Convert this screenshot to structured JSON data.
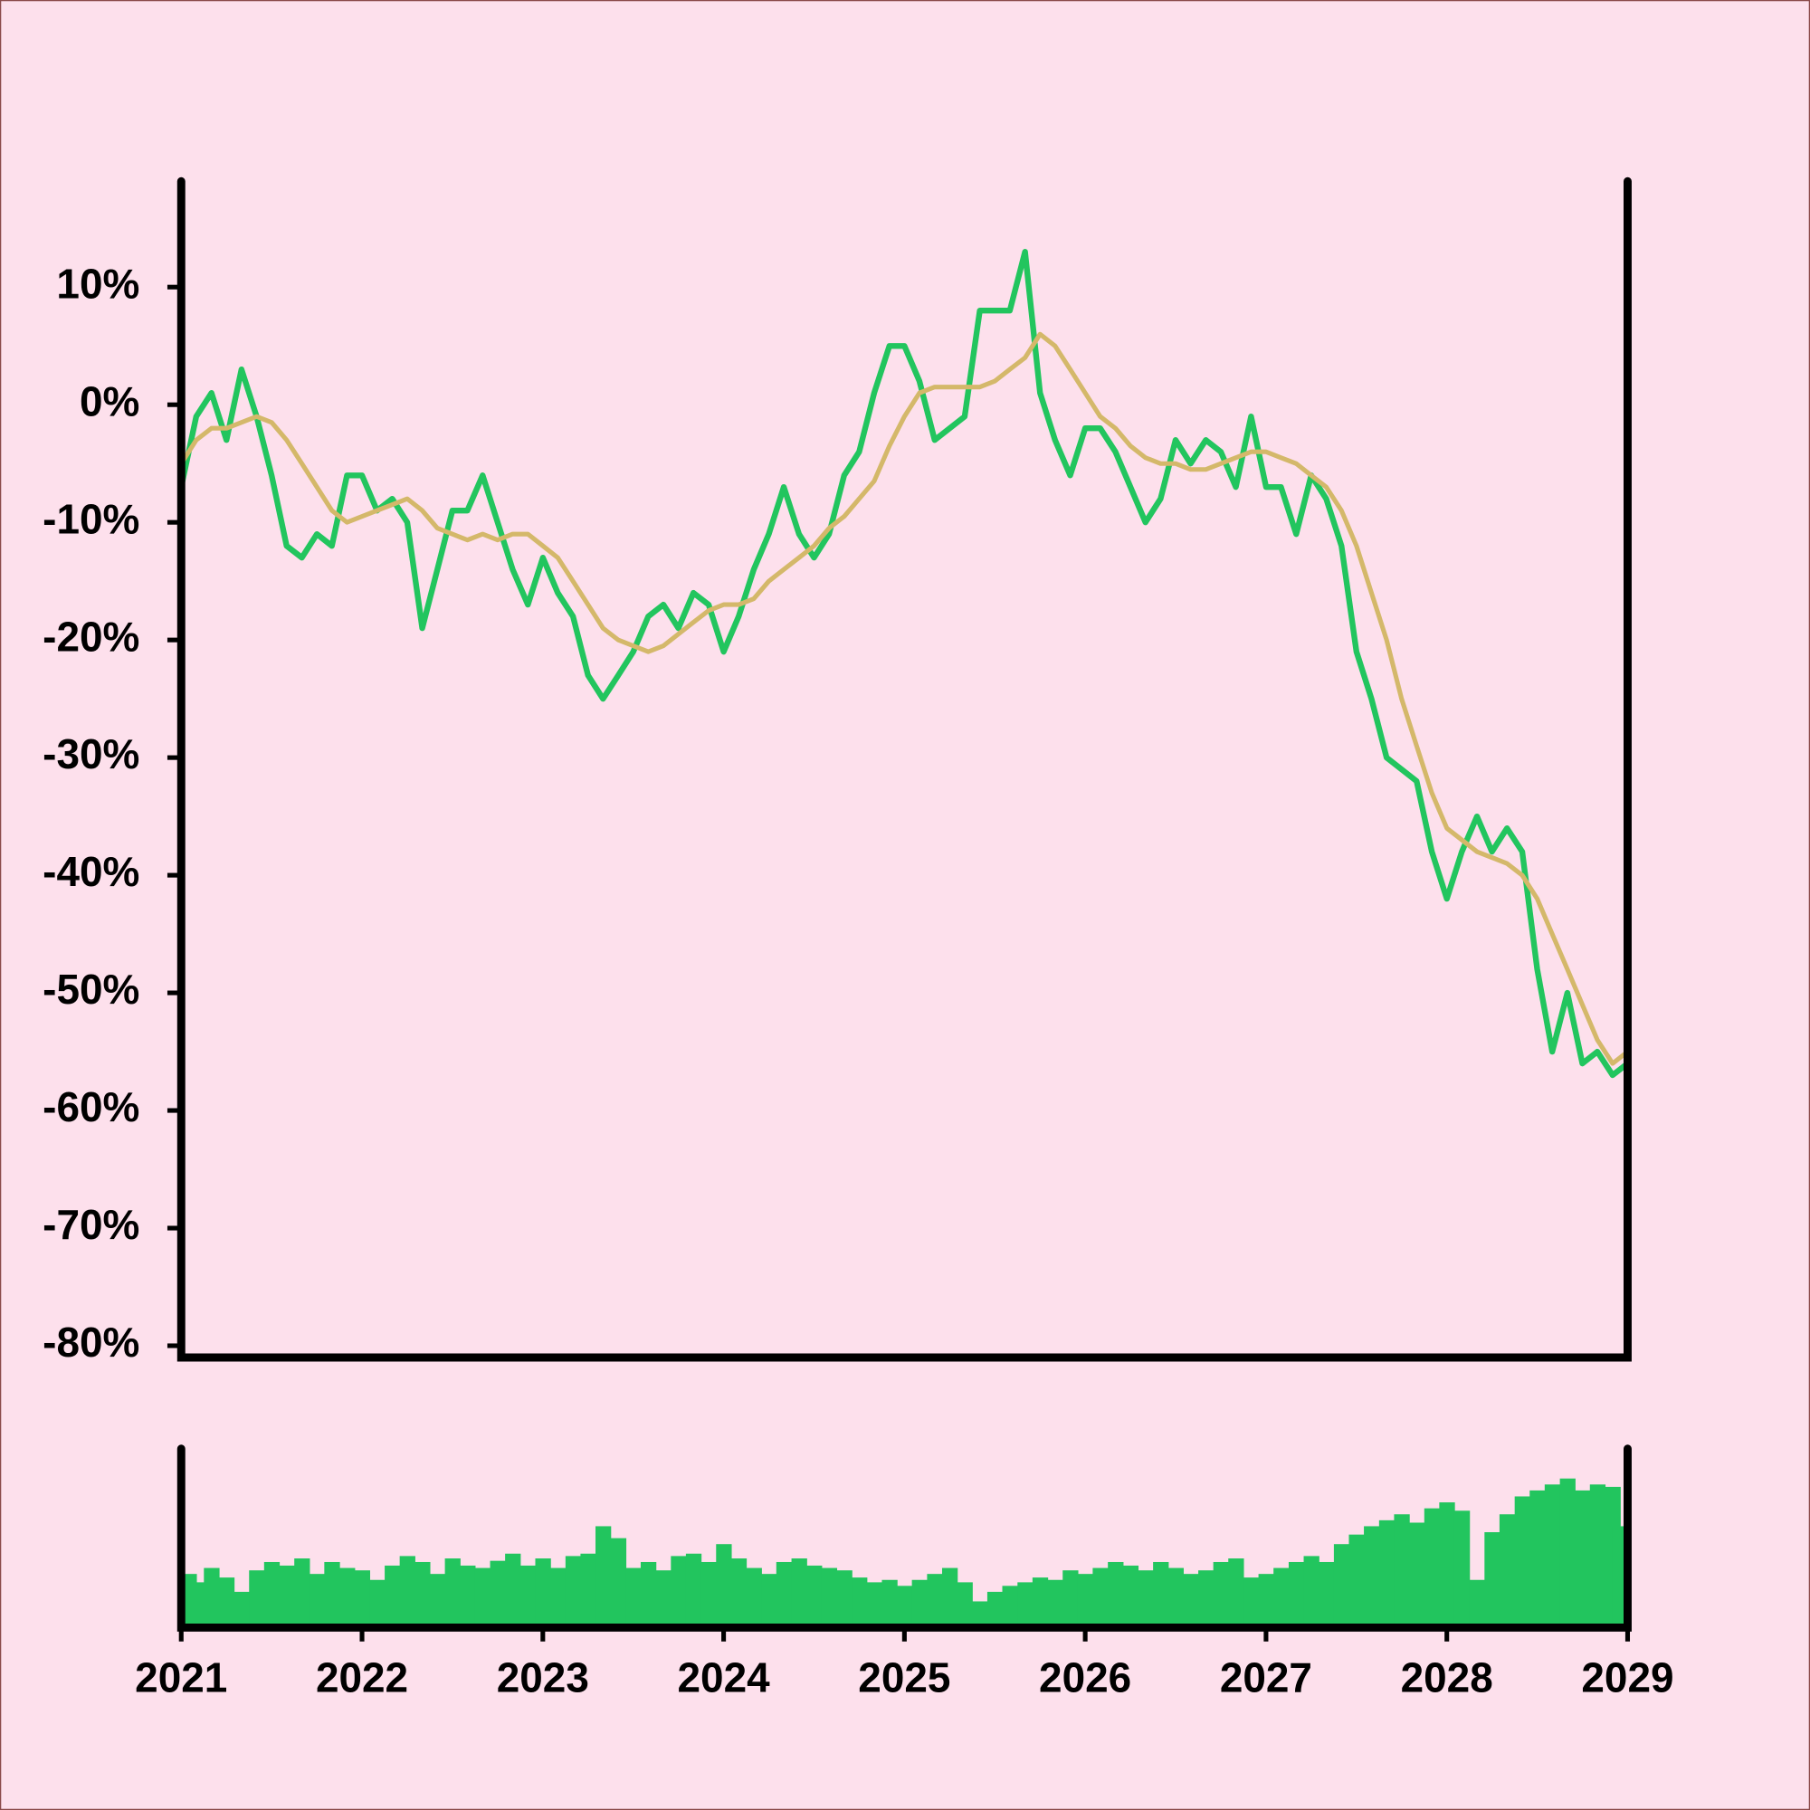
{
  "chart_data": [
    {
      "type": "line",
      "x": [
        2021,
        2021.083,
        2021.167,
        2021.25,
        2021.333,
        2021.417,
        2021.5,
        2021.583,
        2021.667,
        2021.75,
        2021.833,
        2021.917,
        2022,
        2022.083,
        2022.167,
        2022.25,
        2022.333,
        2022.417,
        2022.5,
        2022.583,
        2022.667,
        2022.75,
        2022.833,
        2022.917,
        2023,
        2023.083,
        2023.167,
        2023.25,
        2023.333,
        2023.417,
        2023.5,
        2023.583,
        2023.667,
        2023.75,
        2023.833,
        2023.917,
        2024,
        2024.083,
        2024.167,
        2024.25,
        2024.333,
        2024.417,
        2024.5,
        2024.583,
        2024.667,
        2024.75,
        2024.833,
        2024.917,
        2025,
        2025.083,
        2025.167,
        2025.25,
        2025.333,
        2025.417,
        2025.5,
        2025.583,
        2025.667,
        2025.75,
        2025.833,
        2025.917,
        2026,
        2026.083,
        2026.167,
        2026.25,
        2026.333,
        2026.417,
        2026.5,
        2026.583,
        2026.667,
        2026.75,
        2026.833,
        2026.917,
        2027,
        2027.083,
        2027.167,
        2027.25,
        2027.333,
        2027.417,
        2027.5,
        2027.583,
        2027.667,
        2027.75,
        2027.833,
        2027.917,
        2028,
        2028.083,
        2028.167,
        2028.25,
        2028.333,
        2028.417,
        2028.5,
        2028.583,
        2028.667,
        2028.75,
        2028.833,
        2028.917,
        2029
      ],
      "series": [
        {
          "color": "#22c55e",
          "values": [
            -7,
            -1,
            1,
            -3,
            3,
            -1,
            -6,
            -12,
            -13,
            -11,
            -12,
            -6,
            -6,
            -9,
            -8,
            -10,
            -19,
            -14,
            -9,
            -9,
            -6,
            -10,
            -14,
            -17,
            -13,
            -16,
            -18,
            -23,
            -25,
            -23,
            -21,
            -18,
            -17,
            -19,
            -16,
            -17,
            -21,
            -18,
            -14,
            -11,
            -7,
            -11,
            -13,
            -11,
            -6,
            -4,
            1,
            5,
            5,
            2,
            -3,
            -2,
            -1,
            8,
            8,
            8,
            13,
            1,
            -3,
            -6,
            -2,
            -2,
            -4,
            -7,
            -10,
            -8,
            -3,
            -5,
            -3,
            -4,
            -7,
            -1,
            -7,
            -7,
            -11,
            -6,
            -8,
            -12,
            -21,
            -25,
            -30,
            -31,
            -32,
            -38,
            -42,
            -38,
            -35,
            -38,
            -36,
            -38,
            -48,
            -55,
            -50,
            -56,
            -55,
            -57,
            -56
          ]
        },
        {
          "color": "#d4b86a",
          "values": [
            -5,
            -3,
            -2,
            -2,
            -1.5,
            -1,
            -1.5,
            -3,
            -5,
            -7,
            -9,
            -10,
            -9.5,
            -9,
            -8.5,
            -8,
            -9,
            -10.5,
            -11,
            -11.5,
            -11,
            -11.5,
            -11,
            -11,
            -12,
            -13,
            -15,
            -17,
            -19,
            -20,
            -20.5,
            -21,
            -20.5,
            -19.5,
            -18.5,
            -17.5,
            -17,
            -17,
            -16.5,
            -15,
            -14,
            -13,
            -12,
            -10.5,
            -9.5,
            -8,
            -6.5,
            -3.5,
            -1,
            1,
            1.5,
            1.5,
            1.5,
            1.5,
            2,
            3,
            4,
            6,
            5,
            3,
            1,
            -1,
            -2,
            -3.5,
            -4.5,
            -5,
            -5,
            -5.5,
            -5.5,
            -5,
            -4.5,
            -4,
            -4,
            -4.5,
            -5,
            -6,
            -7,
            -9,
            -12,
            -16,
            -20,
            -25,
            -29,
            -33,
            -36,
            -37,
            -38,
            -38.5,
            -39,
            -40,
            -42,
            -45,
            -48,
            -51,
            -54,
            -56,
            -55
          ]
        }
      ],
      "xlim": [
        2021,
        2029
      ],
      "ylim": [
        -81,
        19
      ],
      "yticks": [
        {
          "value": 10,
          "label": "10%"
        },
        {
          "value": 0,
          "label": "0%"
        },
        {
          "value": -10,
          "label": "-10%"
        },
        {
          "value": -20,
          "label": "-20%"
        },
        {
          "value": -30,
          "label": "-30%"
        },
        {
          "value": -40,
          "label": "-40%"
        },
        {
          "value": -50,
          "label": "-50%"
        },
        {
          "value": -60,
          "label": "-60%"
        },
        {
          "value": -70,
          "label": "-70%"
        },
        {
          "value": -80,
          "label": "-80%"
        }
      ]
    },
    {
      "type": "bar",
      "x": [
        2021,
        2021.083,
        2021.167,
        2021.25,
        2021.333,
        2021.417,
        2021.5,
        2021.583,
        2021.667,
        2021.75,
        2021.833,
        2021.917,
        2022,
        2022.083,
        2022.167,
        2022.25,
        2022.333,
        2022.417,
        2022.5,
        2022.583,
        2022.667,
        2022.75,
        2022.833,
        2022.917,
        2023,
        2023.083,
        2023.167,
        2023.25,
        2023.333,
        2023.417,
        2023.5,
        2023.583,
        2023.667,
        2023.75,
        2023.833,
        2023.917,
        2024,
        2024.083,
        2024.167,
        2024.25,
        2024.333,
        2024.417,
        2024.5,
        2024.583,
        2024.667,
        2024.75,
        2024.833,
        2024.917,
        2025,
        2025.083,
        2025.167,
        2025.25,
        2025.333,
        2025.417,
        2025.5,
        2025.583,
        2025.667,
        2025.75,
        2025.833,
        2025.917,
        2026,
        2026.083,
        2026.167,
        2026.25,
        2026.333,
        2026.417,
        2026.5,
        2026.583,
        2026.667,
        2026.75,
        2026.833,
        2026.917,
        2027,
        2027.083,
        2027.167,
        2027.25,
        2027.333,
        2027.417,
        2027.5,
        2027.583,
        2027.667,
        2027.75,
        2027.833,
        2027.917,
        2028,
        2028.083,
        2028.167,
        2028.25,
        2028.333,
        2028.417,
        2028.5,
        2028.583,
        2028.667,
        2028.75,
        2028.833,
        2028.917,
        2029
      ],
      "values": [
        45,
        38,
        50,
        42,
        30,
        48,
        55,
        52,
        58,
        45,
        55,
        50,
        48,
        40,
        52,
        60,
        55,
        45,
        58,
        52,
        50,
        56,
        62,
        52,
        58,
        50,
        60,
        62,
        85,
        75,
        50,
        55,
        48,
        60,
        62,
        55,
        70,
        58,
        50,
        45,
        55,
        58,
        52,
        50,
        48,
        42,
        38,
        40,
        35,
        40,
        45,
        50,
        38,
        22,
        30,
        35,
        38,
        42,
        40,
        48,
        45,
        50,
        55,
        52,
        48,
        55,
        50,
        45,
        48,
        55,
        58,
        42,
        45,
        50,
        55,
        60,
        55,
        70,
        78,
        85,
        90,
        95,
        88,
        100,
        105,
        98,
        40,
        80,
        95,
        110,
        115,
        120,
        125,
        115,
        120,
        118,
        85
      ],
      "color": "#22c55e",
      "xlim": [
        2021,
        2029
      ],
      "ylim": [
        0,
        150
      ],
      "xticks": [
        2021,
        2022,
        2023,
        2024,
        2025,
        2026,
        2027,
        2028,
        2029
      ]
    }
  ]
}
